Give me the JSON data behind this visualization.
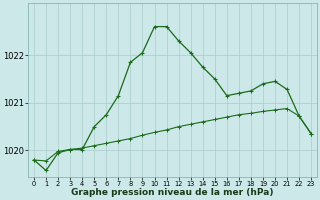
{
  "hours": [
    0,
    1,
    2,
    3,
    4,
    5,
    6,
    7,
    8,
    9,
    10,
    11,
    12,
    13,
    14,
    15,
    16,
    17,
    18,
    19,
    20,
    21,
    22,
    23
  ],
  "line1": [
    1019.8,
    1019.58,
    1019.95,
    1020.02,
    1020.02,
    1020.5,
    1020.75,
    1021.15,
    1021.85,
    1022.05,
    1022.6,
    1022.6,
    1022.3,
    1022.05,
    1021.75,
    1021.5,
    1021.15,
    1021.2,
    1021.25,
    1021.4,
    1021.45,
    1021.28,
    1020.72,
    1020.35
  ],
  "line2": [
    1019.8,
    1019.78,
    1019.98,
    1020.02,
    1020.05,
    1020.1,
    1020.15,
    1020.2,
    1020.25,
    1020.32,
    1020.38,
    1020.43,
    1020.5,
    1020.55,
    1020.6,
    1020.65,
    1020.7,
    1020.75,
    1020.78,
    1020.82,
    1020.85,
    1020.88,
    1020.72,
    1020.35
  ],
  "line_color": "#1a6b1a",
  "bg_color": "#cce8e8",
  "grid_color": "#aacccc",
  "ylim": [
    1019.45,
    1023.1
  ],
  "yticks": [
    1020,
    1021,
    1022
  ],
  "xticks": [
    0,
    1,
    2,
    3,
    4,
    5,
    6,
    7,
    8,
    9,
    10,
    11,
    12,
    13,
    14,
    15,
    16,
    17,
    18,
    19,
    20,
    21,
    22,
    23
  ],
  "xlabel": "Graphe pression niveau de la mer (hPa)"
}
